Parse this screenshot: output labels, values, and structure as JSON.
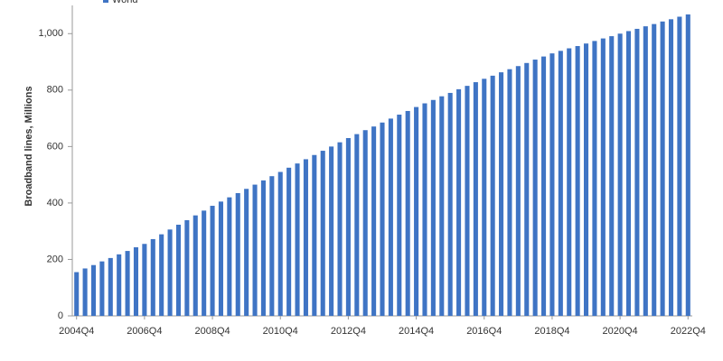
{
  "chart_data": {
    "type": "bar",
    "y_label": "Broadband lines, Millions",
    "categories": [
      "2004Q4",
      null,
      null,
      null,
      null,
      null,
      null,
      null,
      "2006Q4",
      null,
      null,
      null,
      null,
      null,
      null,
      null,
      "2008Q4",
      null,
      null,
      null,
      null,
      null,
      null,
      null,
      "2010Q4",
      null,
      null,
      null,
      null,
      null,
      null,
      null,
      "2012Q4",
      null,
      null,
      null,
      null,
      null,
      null,
      null,
      "2014Q4",
      null,
      null,
      null,
      null,
      null,
      null,
      null,
      "2016Q4",
      null,
      null,
      null,
      null,
      null,
      null,
      null,
      "2018Q4",
      null,
      null,
      null,
      null,
      null,
      null,
      null,
      "2020Q4",
      null,
      null,
      null,
      null,
      null,
      null,
      null,
      "2022Q4"
    ],
    "series": [
      {
        "name": "World",
        "color": "#3f74c4",
        "values": [
          155,
          168,
          180,
          193,
          205,
          218,
          230,
          243,
          255,
          272,
          289,
          306,
          323,
          339,
          356,
          373,
          390,
          405,
          420,
          435,
          450,
          465,
          480,
          495,
          510,
          525,
          540,
          555,
          570,
          585,
          600,
          615,
          630,
          644,
          658,
          671,
          685,
          699,
          713,
          726,
          740,
          753,
          765,
          778,
          790,
          803,
          815,
          828,
          840,
          851,
          863,
          874,
          885,
          896,
          908,
          919,
          930,
          939,
          948,
          956,
          965,
          974,
          983,
          991,
          1000,
          1009,
          1017,
          1026,
          1034,
          1043,
          1051,
          1060,
          1068
        ]
      }
    ],
    "ylim": [
      0,
      1100
    ],
    "yticks": [
      0,
      200,
      400,
      600,
      800,
      {
        "value": 1000,
        "label": "1,000"
      }
    ],
    "grid": false
  }
}
